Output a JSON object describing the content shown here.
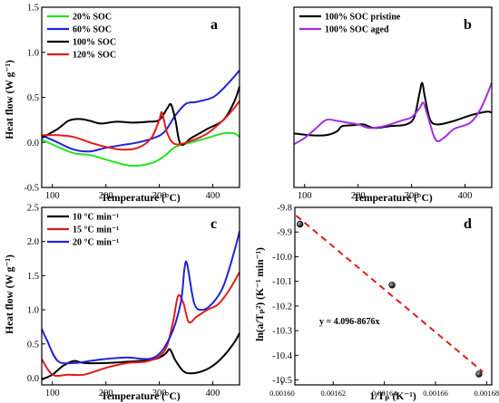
{
  "chart_data": [
    {
      "id": "a",
      "type": "line",
      "panel_label": "a",
      "xlabel": "Temperature (°C)",
      "ylabel": "Heat flow (W g⁻¹)",
      "xlim": [
        80,
        450
      ],
      "ylim": [
        -0.5,
        1.5
      ],
      "xticks": [
        100,
        200,
        300,
        400
      ],
      "yticks": [
        -0.5,
        0.0,
        0.5,
        1.0,
        1.5
      ],
      "ytick_labels": [
        "-0.5",
        "0.0",
        "0.5",
        "1.0",
        "1.5"
      ],
      "legend_position": "top-left",
      "series": [
        {
          "name": "20% SOC",
          "color": "#22e322",
          "x": [
            80,
            110,
            140,
            170,
            200,
            230,
            250,
            270,
            290,
            310,
            330,
            360,
            390,
            420,
            440,
            450
          ],
          "y": [
            0.03,
            -0.05,
            -0.12,
            -0.14,
            -0.19,
            -0.24,
            -0.26,
            -0.25,
            -0.22,
            -0.15,
            -0.05,
            0.0,
            0.05,
            0.1,
            0.1,
            0.06
          ]
        },
        {
          "name": "60% SOC",
          "color": "#2323d6",
          "x": [
            80,
            110,
            140,
            170,
            200,
            230,
            260,
            290,
            310,
            330,
            350,
            370,
            400,
            420,
            440,
            450
          ],
          "y": [
            0.08,
            0.0,
            -0.08,
            -0.1,
            -0.06,
            -0.03,
            0.0,
            0.05,
            0.12,
            0.3,
            0.43,
            0.45,
            0.5,
            0.6,
            0.73,
            0.8
          ]
        },
        {
          "name": "100% SOC",
          "color": "#000000",
          "x": [
            80,
            110,
            130,
            150,
            170,
            190,
            220,
            250,
            280,
            300,
            315,
            322,
            330,
            340,
            360,
            390,
            420,
            440,
            450
          ],
          "y": [
            0.05,
            0.15,
            0.24,
            0.26,
            0.24,
            0.21,
            0.23,
            0.22,
            0.23,
            0.25,
            0.38,
            0.42,
            0.25,
            -0.02,
            0.05,
            0.15,
            0.25,
            0.45,
            0.62
          ]
        },
        {
          "name": "120% SOC",
          "color": "#e31a1a",
          "x": [
            80,
            110,
            140,
            170,
            200,
            230,
            260,
            285,
            300,
            305,
            315,
            330,
            360,
            390,
            420,
            440,
            450
          ],
          "y": [
            0.08,
            0.08,
            0.06,
            0.0,
            -0.05,
            -0.08,
            -0.06,
            0.05,
            0.25,
            0.33,
            0.1,
            -0.02,
            0.02,
            0.1,
            0.25,
            0.38,
            0.46
          ]
        }
      ]
    },
    {
      "id": "b",
      "type": "line",
      "panel_label": "b",
      "xlabel": "Temperature (°C)",
      "ylabel": "",
      "xlim": [
        80,
        450
      ],
      "ylim": [
        -0.5,
        1.5
      ],
      "xticks": [
        100,
        200,
        300,
        400
      ],
      "yticks": [],
      "legend_position": "top-left",
      "series": [
        {
          "name": "100% SOC pristine",
          "color": "#000000",
          "x": [
            80,
            110,
            140,
            160,
            170,
            190,
            210,
            230,
            260,
            290,
            305,
            315,
            320,
            325,
            335,
            350,
            380,
            410,
            440,
            450
          ],
          "y": [
            0.1,
            0.08,
            0.08,
            0.12,
            0.18,
            0.19,
            0.2,
            0.16,
            0.18,
            0.2,
            0.28,
            0.55,
            0.66,
            0.5,
            0.25,
            0.2,
            0.24,
            0.3,
            0.34,
            0.33
          ]
        },
        {
          "name": "100% SOC aged",
          "color": "#a32ee0",
          "x": [
            80,
            100,
            120,
            140,
            160,
            180,
            200,
            220,
            240,
            260,
            280,
            300,
            315,
            322,
            330,
            345,
            360,
            380,
            410,
            430,
            450
          ],
          "y": [
            -0.02,
            0.05,
            0.15,
            0.25,
            0.24,
            0.22,
            0.2,
            0.16,
            0.17,
            0.2,
            0.24,
            0.28,
            0.38,
            0.44,
            0.3,
            0.03,
            0.05,
            0.15,
            0.22,
            0.38,
            0.66
          ]
        }
      ]
    },
    {
      "id": "c",
      "type": "line",
      "panel_label": "c",
      "xlabel": "Temperature (°C)",
      "ylabel": "Heat flow (W g⁻¹)",
      "xlim": [
        80,
        450
      ],
      "ylim": [
        -0.1,
        2.5
      ],
      "xticks": [
        100,
        200,
        300,
        400
      ],
      "yticks": [
        0.0,
        0.5,
        1.0,
        1.5,
        2.0,
        2.5
      ],
      "ytick_labels": [
        "0.0",
        "0.5",
        "1.0",
        "1.5",
        "2.0",
        "2.5"
      ],
      "legend_position": "top-left",
      "series": [
        {
          "name": "10 °C min⁻¹",
          "color": "#000000",
          "x": [
            80,
            100,
            120,
            140,
            160,
            200,
            240,
            280,
            300,
            312,
            320,
            330,
            345,
            360,
            380,
            400,
            420,
            440,
            450
          ],
          "y": [
            -0.02,
            0.05,
            0.18,
            0.25,
            0.22,
            0.22,
            0.24,
            0.26,
            0.3,
            0.36,
            0.42,
            0.26,
            0.1,
            0.07,
            0.1,
            0.18,
            0.32,
            0.52,
            0.66
          ]
        },
        {
          "name": "15 °C min⁻¹",
          "color": "#e31a1a",
          "x": [
            80,
            100,
            130,
            160,
            200,
            240,
            280,
            310,
            325,
            335,
            345,
            355,
            370,
            390,
            410,
            430,
            450
          ],
          "y": [
            0.28,
            0.05,
            0.05,
            0.05,
            0.15,
            0.22,
            0.25,
            0.4,
            0.8,
            1.2,
            1.1,
            0.82,
            0.9,
            1.0,
            1.08,
            1.28,
            1.55
          ]
        },
        {
          "name": "20 °C min⁻¹",
          "color": "#2323d6",
          "x": [
            80,
            90,
            110,
            140,
            170,
            200,
            240,
            290,
            320,
            340,
            347,
            352,
            365,
            380,
            400,
            420,
            440,
            450
          ],
          "y": [
            0.72,
            0.55,
            0.25,
            0.22,
            0.25,
            0.28,
            0.3,
            0.3,
            0.6,
            1.1,
            1.6,
            1.67,
            1.1,
            1.0,
            1.1,
            1.35,
            1.85,
            2.15
          ]
        }
      ]
    },
    {
      "id": "d",
      "type": "scatter",
      "panel_label": "d",
      "xlabel": "1/Tₚ (K⁻¹)",
      "ylabel": "ln(a/Tₚ²) (K⁻¹ min⁻¹)",
      "xlim": [
        0.001605,
        0.001682
      ],
      "ylim": [
        -10.52,
        -9.8
      ],
      "xticks": [
        0.0016,
        0.00162,
        0.00164,
        0.00166,
        0.00168
      ],
      "xtick_labels": [
        "0.00160",
        "0.00162",
        "0.00164",
        "0.00166",
        "0.00168"
      ],
      "yticks": [
        -9.8,
        -9.9,
        -10.0,
        -10.1,
        -10.2,
        -10.3,
        -10.4,
        -10.5
      ],
      "ytick_labels": [
        "-9.8",
        "-9.9",
        "-10.0",
        "-10.1",
        "-10.2",
        "-10.3",
        "-10.4",
        "-10.5"
      ],
      "points": {
        "x": [
          0.001607,
          0.001643,
          0.001677
        ],
        "y": [
          -9.868,
          -10.115,
          -10.476
        ]
      },
      "fit": {
        "label": "y = 4.096-8676x",
        "intercept": 4.096,
        "slope": -8676,
        "color": "#e31a1a",
        "style": "dashed"
      }
    }
  ]
}
